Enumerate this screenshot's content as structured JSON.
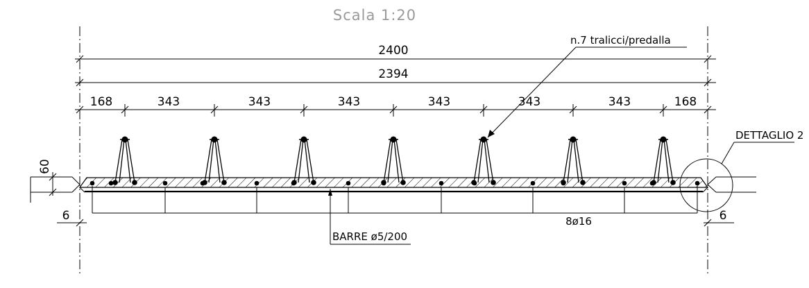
{
  "title": "Scala 1:20",
  "overall_dims": [
    "2400",
    "2394"
  ],
  "spacing_dims": [
    "168",
    "343",
    "343",
    "343",
    "343",
    "343",
    "343",
    "168"
  ],
  "side_dims": {
    "height": "60",
    "left_bottom": "6",
    "right_bottom": "6"
  },
  "labels": {
    "trusses": "n.7 tralicci/predalla",
    "detail": "DETTAGLIO 2",
    "bars_transverse": "BARRE ø5/200",
    "bars_longitudinal": "8ø16"
  },
  "truss_count": 7
}
